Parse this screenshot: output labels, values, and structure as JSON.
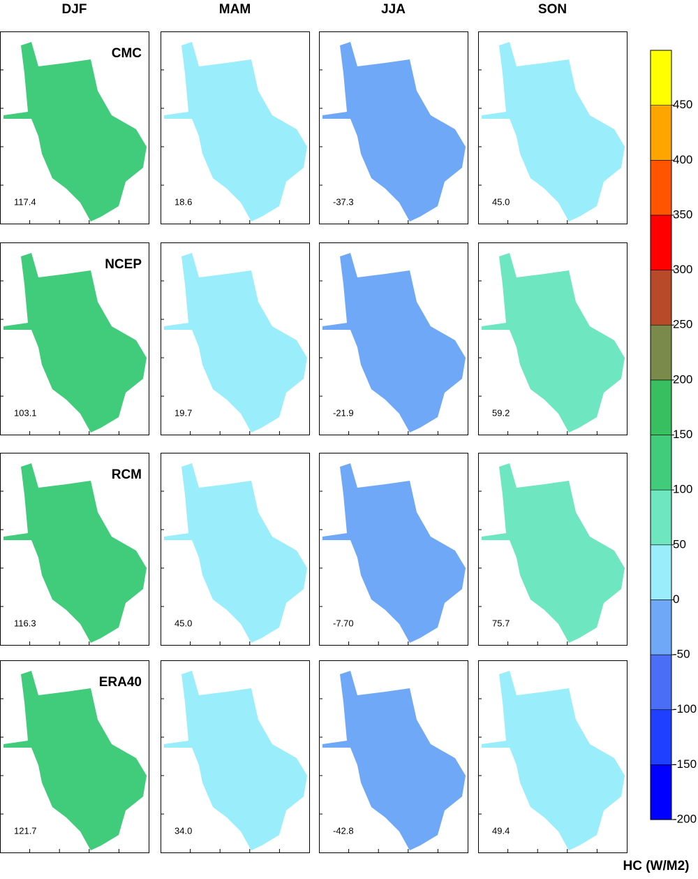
{
  "columns": [
    "DJF",
    "MAM",
    "JJA",
    "SON"
  ],
  "rows": [
    {
      "label": "CMC",
      "values": [
        "117.4",
        "18.6",
        "-37.3",
        "45.0"
      ]
    },
    {
      "label": "NCEP",
      "values": [
        "103.1",
        "19.7",
        "-21.9",
        "59.2"
      ]
    },
    {
      "label": "RCM",
      "values": [
        "116.3",
        "45.0",
        "-7.70",
        "75.7"
      ]
    },
    {
      "label": "ERA40",
      "values": [
        "121.7",
        "34.0",
        "-42.8",
        "49.4"
      ]
    }
  ],
  "colorbar": {
    "label": "HC (W/M2)",
    "ylim": [
      -200,
      500
    ],
    "yticks": [
      -200,
      -150,
      -100,
      -50,
      0,
      50,
      100,
      150,
      200,
      250,
      300,
      350,
      400,
      450
    ],
    "bins": [
      -200,
      -150,
      -100,
      -50,
      0,
      50,
      100,
      150,
      200,
      250,
      300,
      350,
      400,
      450,
      500
    ],
    "colors": [
      "#0000ff",
      "#2040ff",
      "#4a6ef5",
      "#70a8f8",
      "#9aeefc",
      "#6ee6c0",
      "#40cc7a",
      "#38c060",
      "#7a8a4a",
      "#b84a2a",
      "#ff0000",
      "#ff5500",
      "#ffa500",
      "#ffff00"
    ]
  }
}
